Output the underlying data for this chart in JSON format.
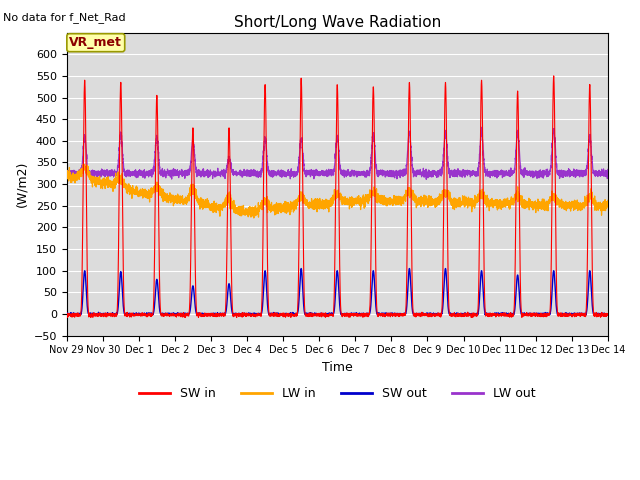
{
  "title": "Short/Long Wave Radiation",
  "xlabel": "Time",
  "ylabel": "(W/m2)",
  "note": "No data for f_Net_Rad",
  "station_label": "VR_met",
  "ylim": [
    -50,
    650
  ],
  "yticks": [
    -50,
    0,
    50,
    100,
    150,
    200,
    250,
    300,
    350,
    400,
    450,
    500,
    550,
    600
  ],
  "colors": {
    "SW_in": "#FF0000",
    "LW_in": "#FFA500",
    "SW_out": "#0000CC",
    "LW_out": "#9933CC"
  },
  "legend": [
    "SW in",
    "LW in",
    "SW out",
    "LW out"
  ],
  "plot_bg": "#DCDCDC",
  "num_days": 15,
  "sw_peaks": [
    540,
    535,
    505,
    430,
    430,
    530,
    545,
    530,
    525,
    535,
    535,
    540,
    515,
    550,
    530
  ],
  "sw_out_peaks": [
    100,
    98,
    80,
    65,
    70,
    100,
    105,
    100,
    100,
    105,
    105,
    100,
    90,
    100,
    100
  ],
  "lw_out_peaks": [
    410,
    418,
    408,
    398,
    360,
    405,
    405,
    410,
    415,
    418,
    418,
    420,
    420,
    425,
    412
  ],
  "lw_in_base": [
    320,
    305,
    280,
    265,
    250,
    235,
    245,
    255,
    260,
    262,
    260,
    258,
    255,
    252,
    250
  ],
  "lw_in_daybump": [
    25,
    20,
    20,
    30,
    20,
    20,
    20,
    20,
    20,
    20,
    20,
    20,
    20,
    20,
    20
  ]
}
